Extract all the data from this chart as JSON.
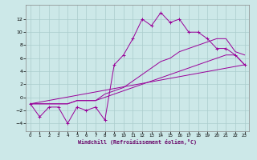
{
  "title": "",
  "xlabel": "Windchill (Refroidissement éolien,°C)",
  "ylabel": "",
  "background_color": "#cce8e8",
  "grid_color": "#aacccc",
  "line_color": "#990099",
  "xlim": [
    -0.5,
    23.5
  ],
  "ylim": [
    -5.2,
    14.2
  ],
  "xticks": [
    0,
    1,
    2,
    3,
    4,
    5,
    6,
    7,
    8,
    9,
    10,
    11,
    12,
    13,
    14,
    15,
    16,
    17,
    18,
    19,
    20,
    21,
    22,
    23
  ],
  "yticks": [
    -4,
    -2,
    0,
    2,
    4,
    6,
    8,
    10,
    12
  ],
  "series0_x": [
    0,
    1,
    2,
    3,
    4,
    5,
    6,
    7,
    8,
    9,
    10,
    11,
    12,
    13,
    14,
    15,
    16,
    17,
    18,
    19,
    20,
    21,
    22,
    23
  ],
  "series0_y": [
    -1,
    -3,
    -1.5,
    -1.5,
    -4,
    -1.5,
    -2,
    -1.5,
    -3.5,
    5,
    6.5,
    9,
    12,
    11,
    13,
    11.5,
    12,
    10,
    10,
    9,
    7.5,
    7.5,
    6.5,
    5
  ],
  "series1_x": [
    0,
    1,
    2,
    3,
    4,
    5,
    6,
    7,
    8,
    9,
    10,
    11,
    12,
    13,
    14,
    15,
    16,
    17,
    18,
    19,
    20,
    21,
    22,
    23
  ],
  "series1_y": [
    -1,
    -1,
    -1,
    -1,
    -1,
    -0.5,
    -0.5,
    -0.5,
    0,
    0.5,
    1,
    1.5,
    2,
    2.5,
    3,
    3.5,
    4,
    4.5,
    5,
    5.5,
    6,
    6.5,
    6.5,
    5
  ],
  "series2_x": [
    0,
    1,
    2,
    3,
    4,
    5,
    6,
    7,
    8,
    9,
    10,
    11,
    12,
    13,
    14,
    15,
    16,
    17,
    18,
    19,
    20,
    21,
    22,
    23
  ],
  "series2_y": [
    -1,
    -1,
    -1,
    -1,
    -1,
    -0.5,
    -0.5,
    -0.5,
    0.5,
    1,
    1.5,
    2.5,
    3.5,
    4.5,
    5.5,
    6,
    7,
    7.5,
    8,
    8.5,
    9,
    9,
    7,
    6.5
  ],
  "series3_x": [
    0,
    23
  ],
  "series3_y": [
    -1,
    5
  ]
}
